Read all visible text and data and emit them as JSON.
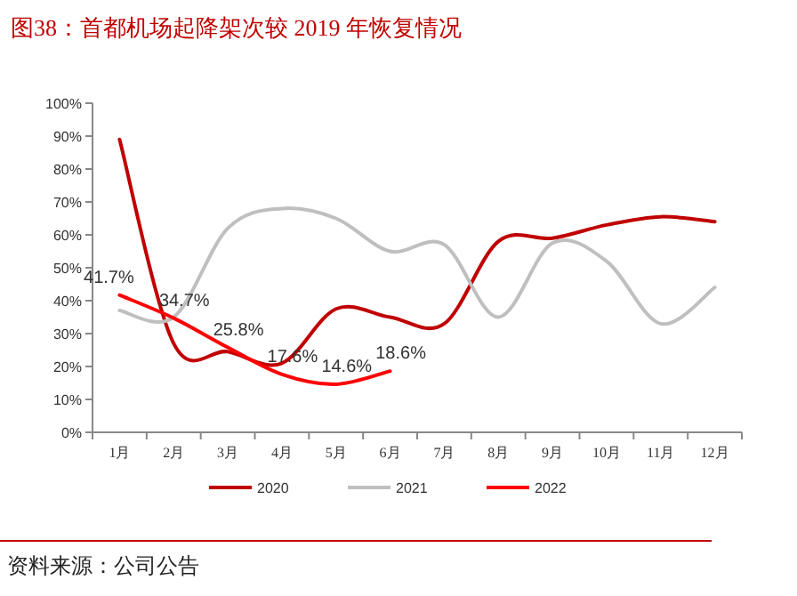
{
  "chart_data": {
    "type": "line",
    "title": "图38：首都机场起降架次较 2019 年恢复情况",
    "categories": [
      "1月",
      "2月",
      "3月",
      "4月",
      "5月",
      "6月",
      "7月",
      "8月",
      "9月",
      "10月",
      "11月",
      "12月"
    ],
    "series": [
      {
        "name": "2020",
        "color": "#c00000",
        "values": [
          89,
          27,
          24.5,
          21,
          37.5,
          35,
          33,
          58,
          59,
          63,
          65.5,
          64
        ]
      },
      {
        "name": "2021",
        "color": "#bfbfbf",
        "values": [
          37,
          35,
          62,
          68,
          65,
          55,
          57,
          35,
          57.5,
          52,
          33,
          44
        ]
      },
      {
        "name": "2022",
        "color": "#ff0000",
        "values": [
          41.7,
          34.7,
          25.8,
          17.6,
          14.6,
          18.6,
          null,
          null,
          null,
          null,
          null,
          null
        ],
        "value_labels": [
          "41.7%",
          "34.7%",
          "25.8%",
          "17.6%",
          "14.6%",
          "18.6%",
          null,
          null,
          null,
          null,
          null,
          null
        ]
      }
    ],
    "ylim": [
      0,
      100
    ],
    "yticks": [
      {
        "value": 0,
        "label": "0%"
      },
      {
        "value": 10,
        "label": "10%"
      },
      {
        "value": 20,
        "label": "20%"
      },
      {
        "value": 30,
        "label": "30%"
      },
      {
        "value": 40,
        "label": "40%"
      },
      {
        "value": 50,
        "label": "50%"
      },
      {
        "value": 60,
        "label": "60%"
      },
      {
        "value": 70,
        "label": "70%"
      },
      {
        "value": 80,
        "label": "80%"
      },
      {
        "value": 90,
        "label": "90%"
      },
      {
        "value": 100,
        "label": "100%"
      }
    ],
    "grid": false,
    "legend": "bottom",
    "marker": "none",
    "line_style": "solid",
    "annotations": [
      "资料来源：公司公告"
    ]
  }
}
